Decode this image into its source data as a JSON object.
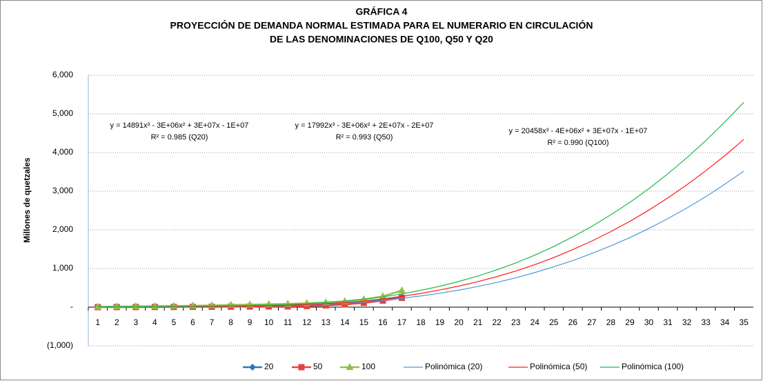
{
  "chart_data": {
    "type": "line",
    "title": [
      "GRÁFICA 4",
      "PROYECCIÓN DE DEMANDA NORMAL ESTIMADA PARA EL NUMERARIO EN CIRCULACIÓN",
      "DE LAS DENOMINACIONES DE Q100, Q50 Y Q20"
    ],
    "y_label": "Millones de quetzales",
    "categories": [
      "1",
      "2",
      "3",
      "4",
      "5",
      "6",
      "7",
      "8",
      "9",
      "10",
      "11",
      "12",
      "13",
      "14",
      "15",
      "16",
      "17",
      "18",
      "19",
      "20",
      "21",
      "22",
      "23",
      "24",
      "25",
      "26",
      "27",
      "28",
      "29",
      "30",
      "31",
      "32",
      "33",
      "34",
      "35"
    ],
    "series": [
      {
        "name": "20",
        "color": "#2e75b6",
        "marker": "diamond",
        "values": [
          5,
          8,
          10,
          12,
          15,
          20,
          25,
          30,
          35,
          40,
          45,
          55,
          70,
          90,
          130,
          190,
          270,
          null,
          null,
          null,
          null,
          null,
          null,
          null,
          null,
          null,
          null,
          null,
          null,
          null,
          null,
          null,
          null,
          null,
          null
        ]
      },
      {
        "name": "50",
        "color": "#e8413c",
        "marker": "square",
        "values": [
          0,
          2,
          3,
          5,
          6,
          8,
          10,
          12,
          15,
          18,
          20,
          28,
          45,
          70,
          110,
          170,
          240,
          null,
          null,
          null,
          null,
          null,
          null,
          null,
          null,
          null,
          null,
          null,
          null,
          null,
          null,
          null,
          null,
          null,
          null
        ]
      },
      {
        "name": "100",
        "color": "#8fc14a",
        "marker": "triangle",
        "values": [
          10,
          15,
          20,
          25,
          30,
          35,
          45,
          55,
          65,
          75,
          85,
          100,
          120,
          150,
          200,
          280,
          430,
          null,
          null,
          null,
          null,
          null,
          null,
          null,
          null,
          null,
          null,
          null,
          null,
          null,
          null,
          null,
          null,
          null,
          null
        ]
      },
      {
        "name": "Polinómica (20)",
        "color": "#4f97d6",
        "marker": "none",
        "values": [
          10,
          8,
          8,
          10,
          12,
          15,
          18,
          22,
          28,
          35,
          45,
          60,
          80,
          105,
          135,
          175,
          230,
          290,
          360,
          440,
          535,
          640,
          760,
          895,
          1045,
          1205,
          1390,
          1585,
          1800,
          2035,
          2290,
          2565,
          2860,
          3180,
          3520
        ]
      },
      {
        "name": "Polinómica (50)",
        "color": "#ff1a1a",
        "marker": "none",
        "values": [
          10,
          8,
          8,
          10,
          12,
          15,
          18,
          24,
          30,
          40,
          52,
          68,
          88,
          118,
          160,
          215,
          280,
          355,
          445,
          545,
          660,
          790,
          935,
          1100,
          1285,
          1490,
          1710,
          1955,
          2220,
          2510,
          2825,
          3165,
          3530,
          3920,
          4340
        ]
      },
      {
        "name": "Polinómica (100)",
        "color": "#1fb84a",
        "marker": "none",
        "values": [
          10,
          10,
          12,
          15,
          20,
          25,
          30,
          36,
          45,
          55,
          68,
          90,
          120,
          160,
          205,
          265,
          340,
          435,
          540,
          665,
          805,
          965,
          1145,
          1345,
          1570,
          1820,
          2090,
          2390,
          2710,
          3065,
          3450,
          3865,
          4310,
          4790,
          5300
        ]
      }
    ],
    "annotations": [
      [
        "y = 14891x³ - 3E+06x² + 3E+07x - 1E+07",
        "R² = 0.985  (Q20)"
      ],
      [
        "y = 17992x³ - 3E+06x² + 2E+07x - 2E+07",
        "R² = 0.993  (Q50)"
      ],
      [
        "y = 20458x³ - 4E+06x² + 3E+07x - 1E+07",
        "R² = 0.990  (Q100)"
      ]
    ],
    "ylim": [
      -1000,
      6000
    ],
    "yticks": [
      {
        "value": -1000,
        "label": "(1,000)"
      },
      {
        "value": 0,
        "label": "-"
      },
      {
        "value": 1000,
        "label": "1,000"
      },
      {
        "value": 2000,
        "label": "2,000"
      },
      {
        "value": 3000,
        "label": "3,000"
      },
      {
        "value": 4000,
        "label": "4,000"
      },
      {
        "value": 5000,
        "label": "5,000"
      },
      {
        "value": 6000,
        "label": "6,000"
      }
    ],
    "grid": true,
    "legend": "bottom"
  }
}
